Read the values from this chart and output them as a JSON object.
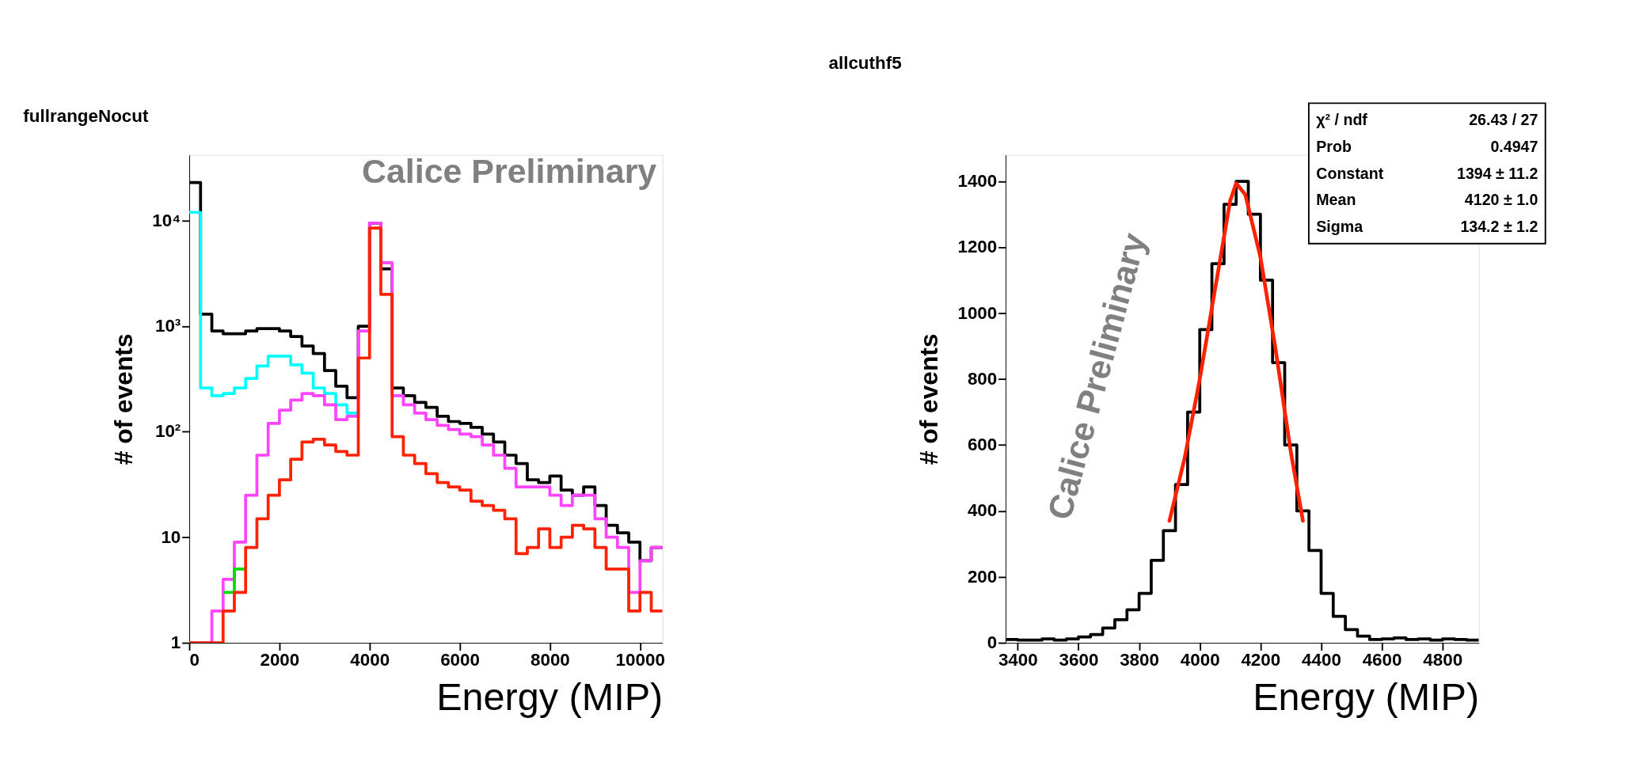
{
  "chart_data": [
    {
      "type": "histogram",
      "title": "fullrangeNocut",
      "xlabel": "Energy     (MIP)",
      "ylabel": "# of events",
      "log": true,
      "xlim": [
        0,
        10500
      ],
      "ylim": [
        1,
        42000
      ],
      "xticks": [
        0,
        2000,
        4000,
        6000,
        8000,
        10000
      ],
      "yticks": [
        1,
        10,
        {
          "value": 100,
          "label": "10²"
        },
        {
          "value": 1000,
          "label": "10³"
        },
        {
          "value": 10000,
          "label": "10⁴"
        }
      ],
      "bins": [
        0,
        250,
        500,
        750,
        1000,
        1250,
        1500,
        1750,
        2000,
        2250,
        2500,
        2750,
        3000,
        3250,
        3500,
        3750,
        4000,
        4250,
        4500,
        4750,
        5000,
        5250,
        5500,
        5750,
        6000,
        6250,
        6500,
        6750,
        7000,
        7250,
        7500,
        7750,
        8000,
        8250,
        8500,
        8750,
        9000,
        9250,
        9500,
        9750,
        10000,
        10250,
        10500
      ],
      "annotations": [
        "Calice Preliminary"
      ],
      "series": [
        {
          "color": "#000000",
          "values": [
            23000,
            1300,
            900,
            850,
            850,
            900,
            950,
            950,
            900,
            800,
            650,
            550,
            380,
            270,
            210,
            1000,
            9500,
            3500,
            260,
            220,
            190,
            170,
            140,
            125,
            120,
            110,
            95,
            80,
            60,
            50,
            35,
            33,
            38,
            28,
            25,
            30,
            20,
            13,
            11,
            9,
            6,
            8
          ]
        },
        {
          "color": "#00ffff",
          "bins": [
            0,
            250,
            500,
            750,
            1000,
            1250,
            1500,
            1750,
            2000,
            2250,
            2500,
            2750,
            3000,
            3250,
            3500,
            3750
          ],
          "values": [
            12000,
            260,
            220,
            230,
            260,
            320,
            420,
            520,
            520,
            430,
            360,
            260,
            230,
            180,
            150
          ]
        },
        {
          "color": "#ff44ff",
          "values": [
            1,
            1,
            2,
            4,
            9,
            25,
            60,
            120,
            160,
            200,
            230,
            220,
            180,
            130,
            140,
            900,
            9500,
            4000,
            220,
            180,
            150,
            130,
            115,
            105,
            95,
            90,
            75,
            60,
            45,
            30,
            30,
            30,
            25,
            20,
            25,
            25,
            15,
            10,
            8,
            3,
            6,
            8
          ]
        },
        {
          "color": "#00dd00",
          "bins": [
            750,
            1000,
            1250
          ],
          "values": [
            3,
            5
          ]
        },
        {
          "color": "#ff2200",
          "values": [
            1,
            1,
            1,
            2,
            3,
            8,
            15,
            25,
            35,
            55,
            80,
            85,
            75,
            65,
            60,
            500,
            8500,
            2000,
            90,
            60,
            50,
            40,
            33,
            30,
            28,
            22,
            20,
            18,
            15,
            7,
            8,
            12,
            8,
            10,
            13,
            12,
            8,
            5,
            5,
            2,
            3,
            2
          ]
        }
      ]
    },
    {
      "type": "histogram",
      "title": "allcuthf5",
      "xlabel": "Energy     (MIP)",
      "ylabel": "# of events",
      "xlim": [
        3360,
        4920
      ],
      "ylim": [
        0,
        1480
      ],
      "xticks": [
        3400,
        3600,
        3800,
        4000,
        4200,
        4400,
        4600,
        4800
      ],
      "yticks": [
        0,
        200,
        400,
        600,
        800,
        1000,
        1200,
        1400
      ],
      "bins": [
        3360,
        3400,
        3440,
        3480,
        3520,
        3560,
        3600,
        3640,
        3680,
        3720,
        3760,
        3800,
        3840,
        3880,
        3920,
        3960,
        4000,
        4040,
        4080,
        4120,
        4160,
        4200,
        4240,
        4280,
        4320,
        4360,
        4400,
        4440,
        4480,
        4520,
        4560,
        4600,
        4640,
        4680,
        4720,
        4760,
        4800,
        4840,
        4880,
        4920
      ],
      "annotations": [
        "Calice Preliminary",
        "χ² / ndf",
        "26.43 / 27",
        "Prob",
        "0.4947",
        "Constant",
        "1394 ± 11.2",
        "Mean",
        "4120 ± 1.0",
        "Sigma",
        "134.2 ± 1.2"
      ],
      "series": [
        {
          "color": "#000000",
          "values": [
            10,
            8,
            8,
            12,
            8,
            12,
            18,
            25,
            45,
            70,
            100,
            150,
            250,
            340,
            480,
            700,
            950,
            1150,
            1330,
            1400,
            1300,
            1100,
            850,
            600,
            400,
            280,
            150,
            80,
            40,
            20,
            10,
            12,
            15,
            10,
            12,
            8,
            12,
            10,
            8
          ]
        },
        {
          "type": "line",
          "color": "#ff2200",
          "x": [
            3900,
            3950,
            4000,
            4050,
            4100,
            4120,
            4150,
            4200,
            4250,
            4300,
            4340
          ],
          "values": [
            370,
            560,
            800,
            1070,
            1340,
            1394,
            1360,
            1170,
            890,
            580,
            370
          ]
        }
      ]
    }
  ]
}
